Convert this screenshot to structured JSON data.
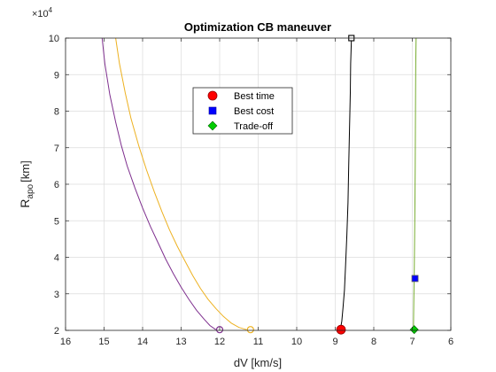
{
  "chart_data": {
    "type": "line",
    "title": "Optimization CB maneuver",
    "xlabel": "dV [km/s]",
    "ylabel_main": "R",
    "ylabel_sub": "apo",
    "ylabel_unit": "[km]",
    "y_exponent_prefix": "×10",
    "y_exponent_power": "4",
    "x_reversed": true,
    "xlim": [
      6,
      16
    ],
    "ylim": [
      2,
      10
    ],
    "x_ticks": [
      16,
      15,
      14,
      13,
      12,
      11,
      10,
      9,
      8,
      7,
      6
    ],
    "y_ticks": [
      2,
      3,
      4,
      5,
      6,
      7,
      8,
      9,
      10
    ],
    "grid": true,
    "legend_position": "upper-center",
    "legend": [
      {
        "label": "Best time",
        "marker": "circle",
        "color": "#ff0000"
      },
      {
        "label": "Best cost",
        "marker": "square",
        "color": "#0000ff"
      },
      {
        "label": "Trade-off",
        "marker": "diamond",
        "color": "#00cc00"
      }
    ],
    "series": [
      {
        "color": "#7e2f8e",
        "x": [
          15.05,
          14.98,
          14.85,
          14.7,
          14.55,
          14.4,
          14.2,
          14.0,
          13.8,
          13.6,
          13.4,
          13.2,
          13.0,
          12.8,
          12.6,
          12.4,
          12.25,
          12.1
        ],
        "y": [
          10.0,
          9.3,
          8.45,
          7.7,
          7.05,
          6.5,
          5.9,
          5.35,
          4.85,
          4.4,
          3.95,
          3.55,
          3.18,
          2.85,
          2.55,
          2.3,
          2.13,
          2.02
        ],
        "end_marker": {
          "x": 12.0,
          "y": 2.02,
          "shape": "circle-open"
        }
      },
      {
        "color": "#edb120",
        "x": [
          14.7,
          14.6,
          14.45,
          14.3,
          14.1,
          13.9,
          13.7,
          13.5,
          13.3,
          13.1,
          12.9,
          12.7,
          12.5,
          12.3,
          12.1,
          11.9,
          11.7,
          11.5,
          11.3
        ],
        "y": [
          10.0,
          9.3,
          8.5,
          7.8,
          7.05,
          6.4,
          5.8,
          5.25,
          4.75,
          4.3,
          3.9,
          3.5,
          3.15,
          2.85,
          2.6,
          2.38,
          2.2,
          2.08,
          2.02
        ],
        "end_marker": {
          "x": 11.2,
          "y": 2.02,
          "shape": "circle-open"
        }
      },
      {
        "color": "#000000",
        "x": [
          8.87,
          8.83,
          8.8,
          8.76,
          8.73,
          8.7,
          8.67,
          8.65,
          8.63,
          8.61,
          8.6,
          8.58
        ],
        "y": [
          2.02,
          2.25,
          2.6,
          3.1,
          3.8,
          4.6,
          5.5,
          6.5,
          7.5,
          8.5,
          9.3,
          10.0
        ],
        "end_marker": {
          "x": 8.58,
          "y": 10.0,
          "shape": "square-open"
        }
      },
      {
        "color": "#77ac30",
        "x": [
          6.97,
          6.96,
          6.95,
          6.94,
          6.93,
          6.925,
          6.92,
          6.915,
          6.91,
          6.9
        ],
        "y": [
          2.02,
          2.8,
          3.6,
          4.5,
          5.5,
          6.5,
          7.5,
          8.5,
          9.3,
          10.0
        ]
      }
    ],
    "markers": [
      {
        "x": 8.85,
        "y": 2.02,
        "shape": "circle",
        "color": "#ff0000"
      },
      {
        "x": 6.93,
        "y": 3.42,
        "shape": "square",
        "color": "#0000ff"
      },
      {
        "x": 6.95,
        "y": 2.02,
        "shape": "diamond",
        "color": "#00cc00"
      }
    ]
  }
}
